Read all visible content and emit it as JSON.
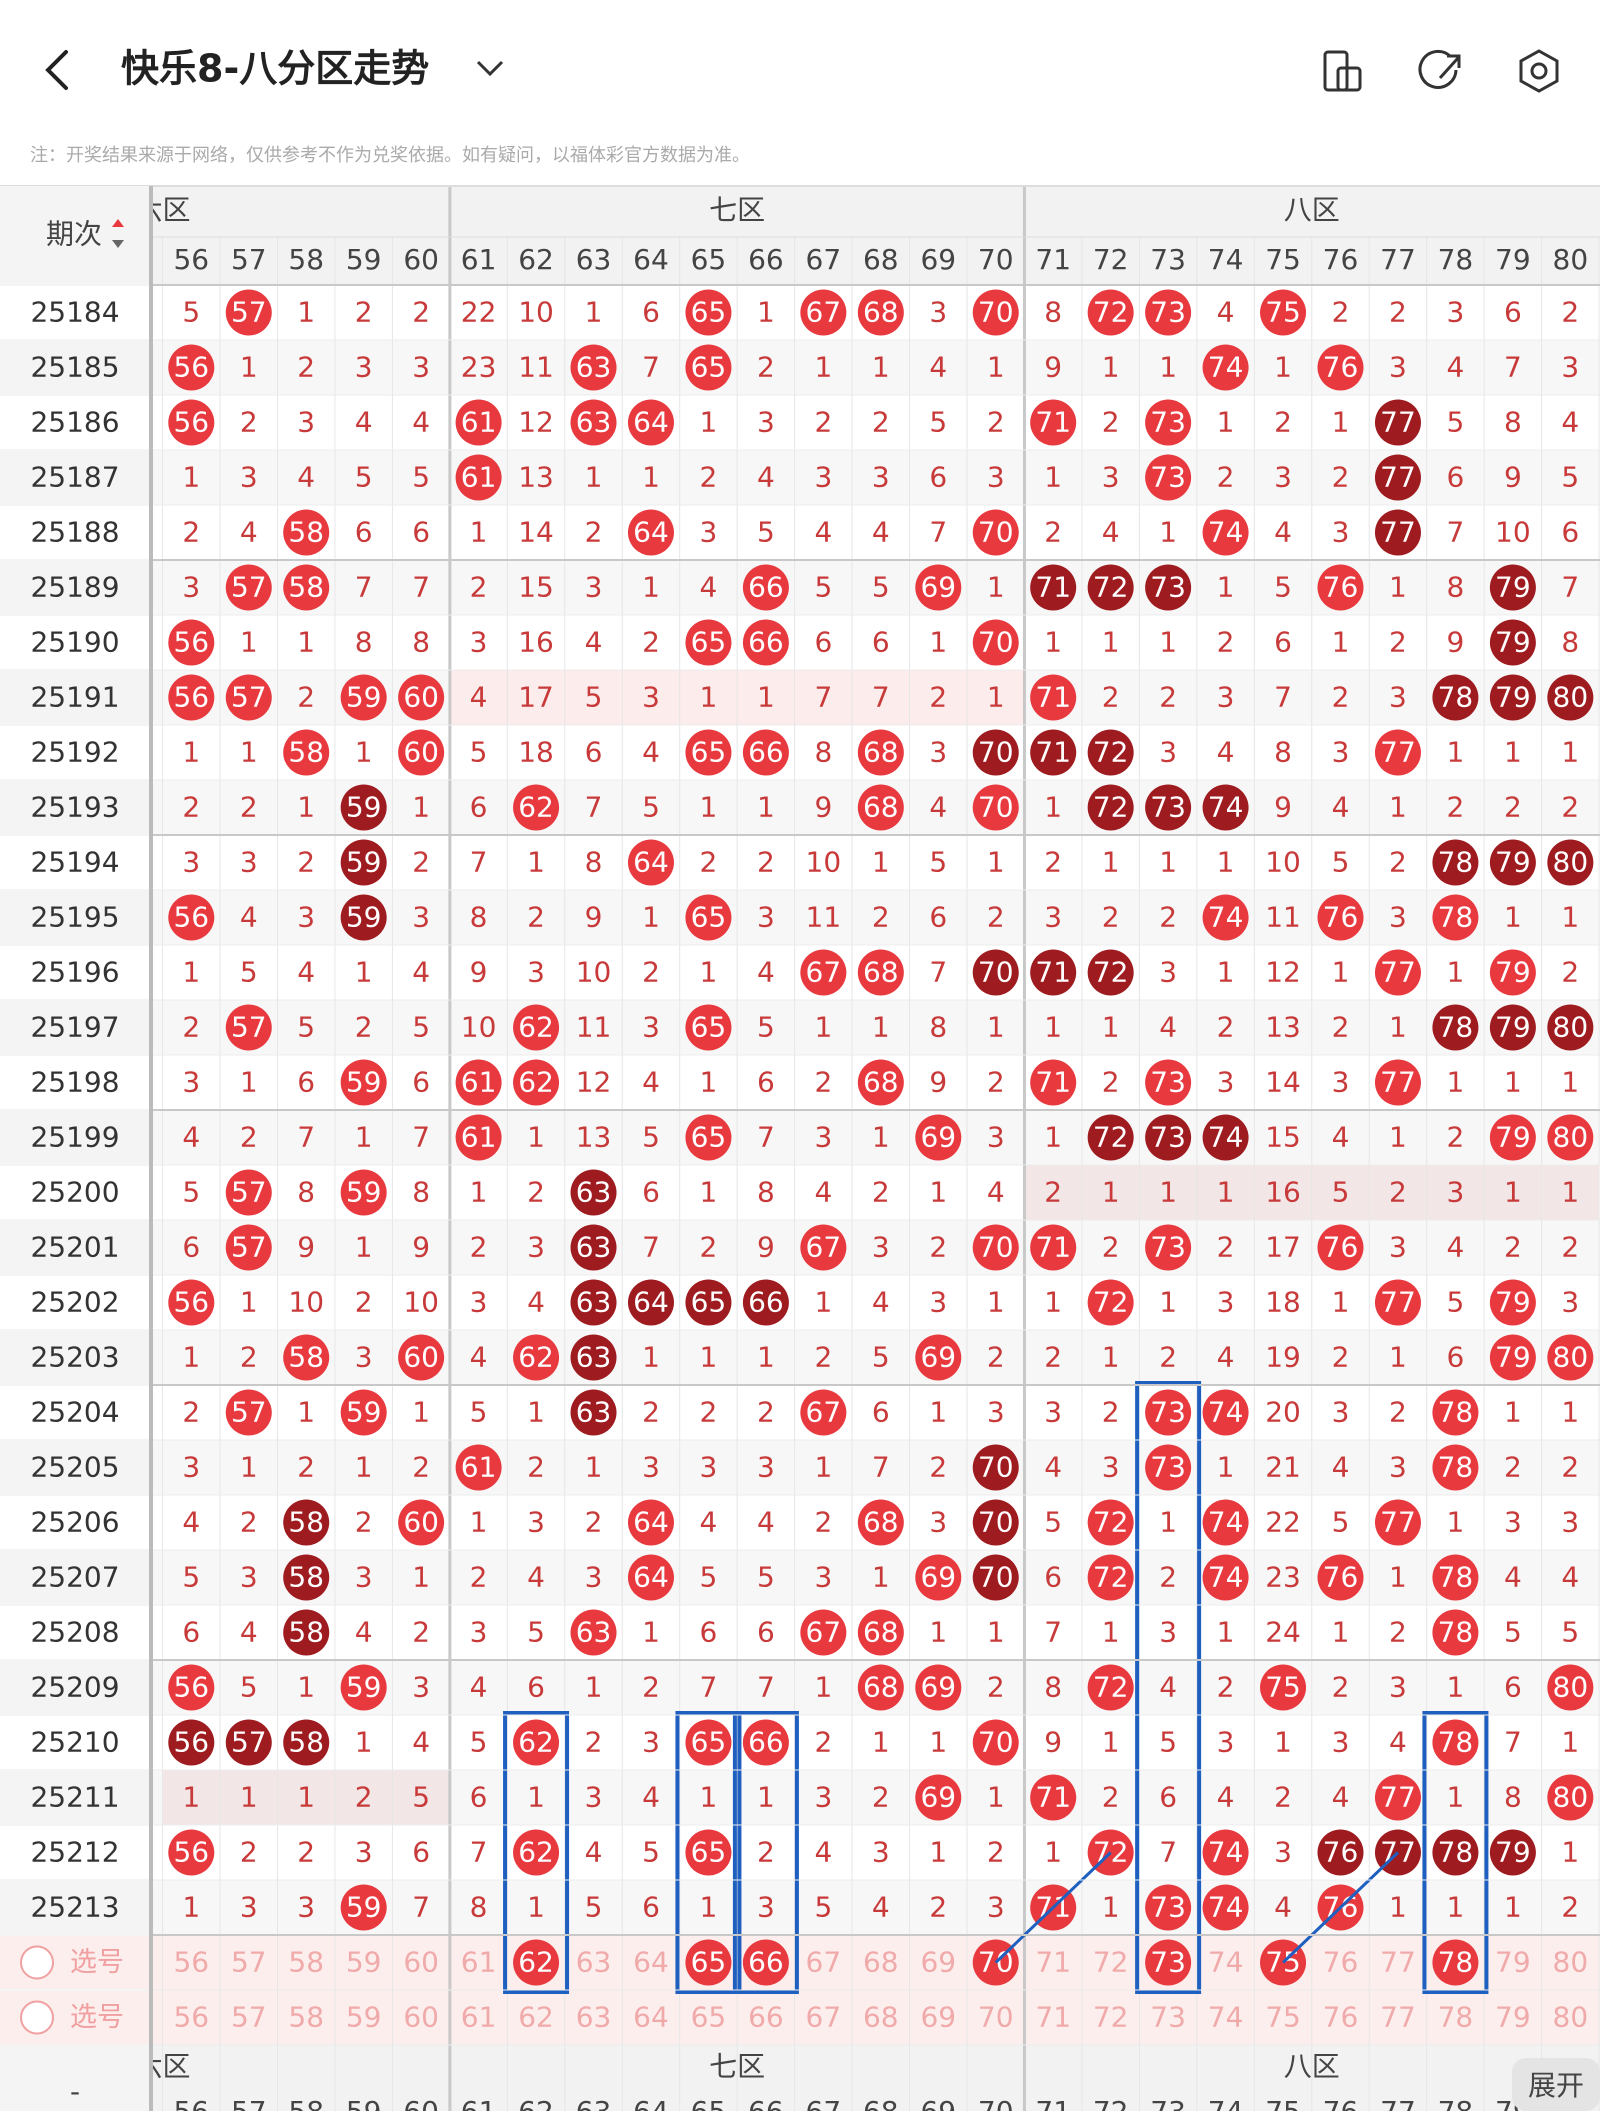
{
  "header": {
    "title": "快乐8-八分区走势",
    "note": "注：开奖结果来源于网络，仅供参考不作为兑奖依据。如有疑问，以福体彩官方数据为准。"
  },
  "table": {
    "issue_header": "期次",
    "zones": [
      "六区",
      "七区",
      "八区"
    ],
    "columns": [
      56,
      57,
      58,
      59,
      60,
      61,
      62,
      63,
      64,
      65,
      66,
      67,
      68,
      69,
      70,
      71,
      72,
      73,
      74,
      75,
      76,
      77,
      78,
      79,
      80
    ],
    "rows": [
      {
        "issue": 25184,
        "cells": [
          5,
          57,
          1,
          2,
          2,
          22,
          10,
          1,
          6,
          65,
          1,
          67,
          68,
          3,
          70,
          8,
          72,
          73,
          4,
          75,
          2,
          2,
          3,
          6,
          2
        ],
        "dark": []
      },
      {
        "issue": 25185,
        "cells": [
          56,
          1,
          2,
          3,
          3,
          23,
          11,
          63,
          7,
          65,
          2,
          1,
          1,
          4,
          1,
          9,
          1,
          1,
          74,
          1,
          76,
          3,
          4,
          7,
          3
        ],
        "dark": []
      },
      {
        "issue": 25186,
        "cells": [
          56,
          2,
          3,
          4,
          4,
          61,
          12,
          63,
          64,
          1,
          3,
          2,
          2,
          5,
          2,
          71,
          2,
          73,
          1,
          2,
          1,
          77,
          5,
          8,
          4
        ],
        "dark": [
          77
        ]
      },
      {
        "issue": 25187,
        "cells": [
          1,
          3,
          4,
          5,
          5,
          61,
          13,
          1,
          1,
          2,
          4,
          3,
          3,
          6,
          3,
          1,
          3,
          73,
          2,
          3,
          2,
          77,
          6,
          9,
          5
        ],
        "dark": [
          77
        ]
      },
      {
        "issue": 25188,
        "cells": [
          2,
          4,
          58,
          6,
          6,
          1,
          14,
          2,
          64,
          3,
          5,
          4,
          4,
          7,
          70,
          2,
          4,
          1,
          74,
          4,
          3,
          77,
          7,
          10,
          6
        ],
        "dark": [
          77
        ]
      },
      {
        "issue": 25189,
        "cells": [
          3,
          57,
          58,
          7,
          7,
          2,
          15,
          3,
          1,
          4,
          66,
          5,
          5,
          69,
          1,
          71,
          72,
          73,
          1,
          5,
          76,
          1,
          8,
          79,
          7
        ],
        "dark": [
          71,
          72,
          73,
          79
        ]
      },
      {
        "issue": 25190,
        "cells": [
          56,
          1,
          1,
          8,
          8,
          3,
          16,
          4,
          2,
          65,
          66,
          6,
          6,
          1,
          70,
          1,
          1,
          1,
          2,
          6,
          1,
          2,
          9,
          79,
          8
        ],
        "dark": [
          79
        ]
      },
      {
        "issue": 25191,
        "cells": [
          56,
          57,
          2,
          59,
          60,
          4,
          17,
          5,
          3,
          1,
          1,
          7,
          7,
          2,
          1,
          71,
          2,
          2,
          3,
          7,
          2,
          3,
          78,
          79,
          80
        ],
        "dark": [
          78,
          79,
          80
        ]
      },
      {
        "issue": 25192,
        "cells": [
          1,
          1,
          58,
          1,
          60,
          5,
          18,
          6,
          4,
          65,
          66,
          8,
          68,
          3,
          70,
          71,
          72,
          3,
          4,
          8,
          3,
          77,
          1,
          1,
          1
        ],
        "dark": [
          70,
          71,
          72
        ]
      },
      {
        "issue": 25193,
        "cells": [
          2,
          2,
          1,
          59,
          1,
          6,
          62,
          7,
          5,
          1,
          1,
          9,
          68,
          4,
          70,
          1,
          72,
          73,
          74,
          9,
          4,
          1,
          2,
          2,
          2
        ],
        "dark": [
          59,
          72,
          73,
          74
        ]
      },
      {
        "issue": 25194,
        "cells": [
          3,
          3,
          2,
          59,
          2,
          7,
          1,
          8,
          64,
          2,
          2,
          10,
          1,
          5,
          1,
          2,
          1,
          1,
          1,
          10,
          5,
          2,
          78,
          79,
          80
        ],
        "dark": [
          59,
          78,
          79,
          80
        ]
      },
      {
        "issue": 25195,
        "cells": [
          56,
          4,
          3,
          59,
          3,
          8,
          2,
          9,
          1,
          65,
          3,
          11,
          2,
          6,
          2,
          3,
          2,
          2,
          74,
          11,
          76,
          3,
          78,
          1,
          1
        ],
        "dark": [
          59
        ]
      },
      {
        "issue": 25196,
        "cells": [
          1,
          5,
          4,
          1,
          4,
          9,
          3,
          10,
          2,
          1,
          4,
          67,
          68,
          7,
          70,
          71,
          72,
          3,
          1,
          12,
          1,
          77,
          1,
          79,
          2
        ],
        "dark": [
          70,
          71,
          72
        ]
      },
      {
        "issue": 25197,
        "cells": [
          2,
          57,
          5,
          2,
          5,
          10,
          62,
          11,
          3,
          65,
          5,
          1,
          1,
          8,
          1,
          1,
          1,
          4,
          2,
          13,
          2,
          1,
          78,
          79,
          80
        ],
        "dark": [
          78,
          79,
          80
        ]
      },
      {
        "issue": 25198,
        "cells": [
          3,
          1,
          6,
          59,
          6,
          61,
          62,
          12,
          4,
          1,
          6,
          2,
          68,
          9,
          2,
          71,
          2,
          73,
          3,
          14,
          3,
          77,
          1,
          1,
          1
        ],
        "dark": []
      },
      {
        "issue": 25199,
        "cells": [
          4,
          2,
          7,
          1,
          7,
          61,
          1,
          13,
          5,
          65,
          7,
          3,
          1,
          69,
          3,
          1,
          72,
          73,
          74,
          15,
          4,
          1,
          2,
          79,
          80
        ],
        "dark": [
          72,
          73,
          74
        ]
      },
      {
        "issue": 25200,
        "cells": [
          5,
          57,
          8,
          59,
          8,
          1,
          2,
          63,
          6,
          1,
          8,
          4,
          2,
          1,
          4,
          2,
          1,
          1,
          1,
          16,
          5,
          2,
          3,
          1,
          1
        ],
        "dark": [
          63
        ]
      },
      {
        "issue": 25201,
        "cells": [
          6,
          57,
          9,
          1,
          9,
          2,
          3,
          63,
          7,
          2,
          9,
          67,
          3,
          2,
          70,
          71,
          2,
          73,
          2,
          17,
          76,
          3,
          4,
          2,
          2
        ],
        "dark": [
          63
        ]
      },
      {
        "issue": 25202,
        "cells": [
          56,
          1,
          10,
          2,
          10,
          3,
          4,
          63,
          64,
          65,
          66,
          1,
          4,
          3,
          1,
          1,
          72,
          1,
          3,
          18,
          1,
          77,
          5,
          79,
          3
        ],
        "dark": [
          63,
          64,
          65,
          66
        ]
      },
      {
        "issue": 25203,
        "cells": [
          1,
          2,
          58,
          3,
          60,
          4,
          62,
          63,
          1,
          1,
          1,
          2,
          5,
          69,
          2,
          2,
          1,
          2,
          4,
          19,
          2,
          1,
          6,
          79,
          80
        ],
        "dark": [
          63
        ]
      },
      {
        "issue": 25204,
        "cells": [
          2,
          57,
          1,
          59,
          1,
          5,
          1,
          63,
          2,
          2,
          2,
          67,
          6,
          1,
          3,
          3,
          2,
          73,
          74,
          20,
          3,
          2,
          78,
          1,
          1
        ],
        "dark": [
          63
        ]
      },
      {
        "issue": 25205,
        "cells": [
          3,
          1,
          2,
          1,
          2,
          61,
          2,
          1,
          3,
          3,
          3,
          1,
          7,
          2,
          70,
          4,
          3,
          73,
          1,
          21,
          4,
          3,
          78,
          2,
          2
        ],
        "dark": [
          70
        ]
      },
      {
        "issue": 25206,
        "cells": [
          4,
          2,
          58,
          2,
          60,
          1,
          3,
          2,
          64,
          4,
          4,
          2,
          68,
          3,
          70,
          5,
          72,
          1,
          74,
          22,
          5,
          77,
          1,
          3,
          3
        ],
        "dark": [
          58,
          70
        ]
      },
      {
        "issue": 25207,
        "cells": [
          5,
          3,
          58,
          3,
          1,
          2,
          4,
          3,
          64,
          5,
          5,
          3,
          1,
          69,
          70,
          6,
          72,
          2,
          74,
          23,
          76,
          1,
          78,
          4,
          4
        ],
        "dark": [
          58,
          70
        ]
      },
      {
        "issue": 25208,
        "cells": [
          6,
          4,
          58,
          4,
          2,
          3,
          5,
          63,
          1,
          6,
          6,
          67,
          68,
          1,
          1,
          7,
          1,
          3,
          1,
          24,
          1,
          2,
          78,
          5,
          5
        ],
        "dark": [
          58
        ]
      },
      {
        "issue": 25209,
        "cells": [
          56,
          5,
          1,
          59,
          3,
          4,
          6,
          1,
          2,
          7,
          7,
          1,
          68,
          69,
          2,
          8,
          72,
          4,
          2,
          75,
          2,
          3,
          1,
          6,
          80
        ],
        "dark": []
      },
      {
        "issue": 25210,
        "cells": [
          56,
          57,
          58,
          1,
          4,
          5,
          62,
          2,
          3,
          65,
          66,
          2,
          1,
          1,
          70,
          9,
          1,
          5,
          3,
          1,
          3,
          4,
          78,
          7,
          1
        ],
        "dark": [
          56,
          57,
          58
        ]
      },
      {
        "issue": 25211,
        "cells": [
          1,
          1,
          1,
          2,
          5,
          6,
          1,
          3,
          4,
          1,
          1,
          3,
          2,
          69,
          1,
          71,
          2,
          6,
          4,
          2,
          4,
          77,
          1,
          8,
          80
        ],
        "dark": []
      },
      {
        "issue": 25212,
        "cells": [
          56,
          2,
          2,
          3,
          6,
          7,
          62,
          4,
          5,
          65,
          2,
          4,
          3,
          1,
          2,
          1,
          72,
          7,
          74,
          3,
          76,
          77,
          78,
          79,
          1
        ],
        "dark": [
          76,
          77,
          78,
          79
        ]
      },
      {
        "issue": 25213,
        "cells": [
          1,
          3,
          3,
          59,
          7,
          8,
          1,
          5,
          6,
          1,
          3,
          5,
          4,
          2,
          3,
          71,
          1,
          73,
          74,
          4,
          76,
          1,
          1,
          1,
          2
        ],
        "dark": []
      }
    ],
    "pick_label": "选号",
    "pick_rows": [
      {
        "selected": [
          62,
          65,
          66,
          70,
          73,
          75,
          78
        ]
      },
      {
        "selected": []
      }
    ],
    "footer_mark": "-"
  },
  "expand": "展开"
}
